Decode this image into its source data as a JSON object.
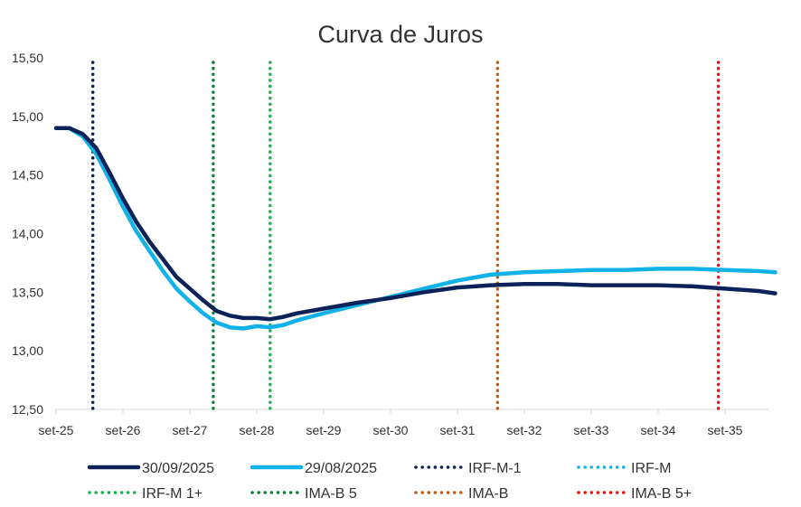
{
  "chart_data": {
    "type": "line",
    "title": "Curva de Juros",
    "xlabel": "",
    "ylabel": "",
    "x_ticks": [
      "set-25",
      "set-26",
      "set-27",
      "set-28",
      "set-29",
      "set-30",
      "set-31",
      "set-32",
      "set-33",
      "set-34",
      "set-35"
    ],
    "y_ticks": [
      "12,50",
      "13,00",
      "13,50",
      "14,00",
      "14,50",
      "15,00",
      "15,50"
    ],
    "ylim": [
      12.5,
      15.5
    ],
    "xlim": [
      0,
      10.75
    ],
    "x_unit": "years from set-25",
    "grid": false,
    "legend_position": "bottom",
    "series": [
      {
        "name": "30/09/2025",
        "color": "#0d2259",
        "style": "solid",
        "x": [
          0,
          0.2,
          0.4,
          0.6,
          0.8,
          1.0,
          1.2,
          1.4,
          1.6,
          1.8,
          2.0,
          2.2,
          2.4,
          2.6,
          2.8,
          3.0,
          3.2,
          3.4,
          3.6,
          4.0,
          4.5,
          5.0,
          5.5,
          6.0,
          6.5,
          7.0,
          7.5,
          8.0,
          8.5,
          9.0,
          9.5,
          10.0,
          10.5,
          10.75
        ],
        "values": [
          14.9,
          14.9,
          14.85,
          14.73,
          14.52,
          14.3,
          14.1,
          13.93,
          13.78,
          13.63,
          13.53,
          13.43,
          13.34,
          13.3,
          13.28,
          13.28,
          13.27,
          13.29,
          13.32,
          13.36,
          13.41,
          13.45,
          13.5,
          13.54,
          13.56,
          13.57,
          13.57,
          13.56,
          13.56,
          13.56,
          13.55,
          13.53,
          13.51,
          13.49
        ]
      },
      {
        "name": "29/08/2025",
        "color": "#10b2e8",
        "style": "solid",
        "x": [
          0,
          0.2,
          0.4,
          0.6,
          0.8,
          1.0,
          1.2,
          1.4,
          1.6,
          1.8,
          2.0,
          2.2,
          2.4,
          2.6,
          2.8,
          3.0,
          3.2,
          3.4,
          3.6,
          4.0,
          4.5,
          5.0,
          5.5,
          6.0,
          6.5,
          7.0,
          7.5,
          8.0,
          8.5,
          9.0,
          9.5,
          10.0,
          10.5,
          10.75
        ],
        "values": [
          14.9,
          14.9,
          14.83,
          14.68,
          14.46,
          14.23,
          14.02,
          13.85,
          13.68,
          13.53,
          13.42,
          13.32,
          13.24,
          13.2,
          13.19,
          13.21,
          13.2,
          13.22,
          13.26,
          13.32,
          13.39,
          13.46,
          13.53,
          13.6,
          13.65,
          13.67,
          13.68,
          13.69,
          13.69,
          13.7,
          13.7,
          13.69,
          13.68,
          13.67
        ]
      }
    ],
    "reference_lines": [
      {
        "name": "IRF-M-1",
        "color": "#0d2259",
        "x": 0.55
      },
      {
        "name": "IRF-M",
        "color": "#10b2e8",
        "x": null
      },
      {
        "name": "IRF-M 1+",
        "color": "#1bb14c",
        "x": 3.2
      },
      {
        "name": "IMA-B 5",
        "color": "#137f3a",
        "x": 2.35
      },
      {
        "name": "IMA-B",
        "color": "#c55a11",
        "x": 6.6
      },
      {
        "name": "IMA-B 5+",
        "color": "#ee1111",
        "x": 9.9
      }
    ],
    "legend": [
      {
        "label": "30/09/2025",
        "color": "#0d2259",
        "style": "solid"
      },
      {
        "label": "29/08/2025",
        "color": "#10b2e8",
        "style": "solid"
      },
      {
        "label": "IRF-M-1",
        "color": "#0d2259",
        "style": "dotted"
      },
      {
        "label": "IRF-M",
        "color": "#10b2e8",
        "style": "dotted"
      },
      {
        "label": "IRF-M 1+",
        "color": "#1bb14c",
        "style": "dotted"
      },
      {
        "label": "IMA-B 5",
        "color": "#137f3a",
        "style": "dotted"
      },
      {
        "label": "IMA-B",
        "color": "#c55a11",
        "style": "dotted"
      },
      {
        "label": "IMA-B 5+",
        "color": "#ee1111",
        "style": "dotted"
      }
    ]
  }
}
